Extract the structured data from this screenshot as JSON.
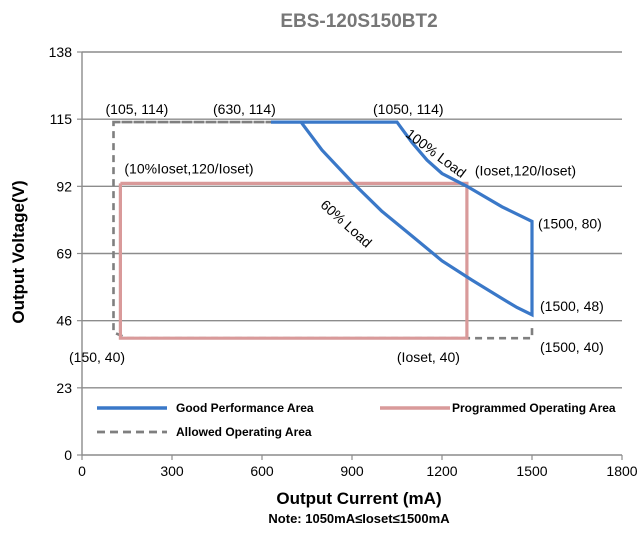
{
  "chart_data": {
    "type": "line",
    "title": "EBS-120S150BT2",
    "xlabel": "Output Current (mA)",
    "ylabel": "Output Voltage(V)",
    "note": "Note:  1050mA≤Ioset≤1500mA",
    "xlim": [
      0,
      1800
    ],
    "ylim": [
      0,
      138
    ],
    "xticks": [
      0,
      300,
      600,
      900,
      1200,
      1500,
      1800
    ],
    "yticks": [
      0,
      23,
      46,
      69,
      92,
      115,
      138
    ],
    "grid": "horizontal",
    "legend_position": "bottom-inside",
    "colors": {
      "good": "#3a78c8",
      "programmed": "#d99a9a",
      "allowed": "#7f7f7f",
      "grid": "#8c8c8c",
      "title": "#777777"
    },
    "series": [
      {
        "name": "Good Performance Area",
        "style": "solid",
        "points": [
          [
            630,
            114
          ],
          [
            1050,
            114
          ],
          [
            1100,
            107
          ],
          [
            1150,
            101
          ],
          [
            1200,
            96.4
          ],
          [
            1283,
            92
          ],
          [
            1400,
            85
          ],
          [
            1500,
            80
          ],
          [
            1500,
            48
          ],
          [
            1450,
            50.5
          ],
          [
            1400,
            53.6
          ],
          [
            1300,
            59.9
          ],
          [
            1200,
            66.5
          ],
          [
            1100,
            75
          ],
          [
            1000,
            83.4
          ],
          [
            900,
            93.5
          ],
          [
            800,
            104.4
          ],
          [
            730,
            114
          ],
          [
            630,
            114
          ]
        ]
      },
      {
        "name": "Programmed Operating Area",
        "style": "solid",
        "points": [
          [
            128,
            93
          ],
          [
            1283,
            93
          ],
          [
            1283,
            40
          ],
          [
            128,
            40
          ],
          [
            128,
            93
          ]
        ]
      },
      {
        "name": "Allowed Operating Area",
        "style": "dashed",
        "points": [
          [
            105,
            114
          ],
          [
            630,
            114
          ],
          [
            105,
            114
          ],
          [
            105,
            42
          ],
          [
            150,
            40
          ],
          [
            1500,
            40
          ],
          [
            1500,
            44
          ]
        ]
      }
    ],
    "annotations": [
      {
        "text": "(105, 114)",
        "x": 105,
        "y": 114
      },
      {
        "text": "(630, 114)",
        "x": 630,
        "y": 114
      },
      {
        "text": "(1050, 114)",
        "x": 1050,
        "y": 114
      },
      {
        "text": "(10%Ioset,120/Ioset)",
        "x": 128,
        "y": 93
      },
      {
        "text": "(Ioset,120/Ioset)",
        "x": 1283,
        "y": 93
      },
      {
        "text": "(1500, 80)",
        "x": 1500,
        "y": 80
      },
      {
        "text": "(1500, 48)",
        "x": 1500,
        "y": 48
      },
      {
        "text": "(1500, 40)",
        "x": 1500,
        "y": 40
      },
      {
        "text": "(150, 40)",
        "x": 150,
        "y": 40
      },
      {
        "text": "(Ioset, 40)",
        "x": 1283,
        "y": 40
      },
      {
        "text": "100% Load",
        "x": 1170,
        "y": 102
      },
      {
        "text": "60% Load",
        "x": 870,
        "y": 78
      }
    ]
  }
}
